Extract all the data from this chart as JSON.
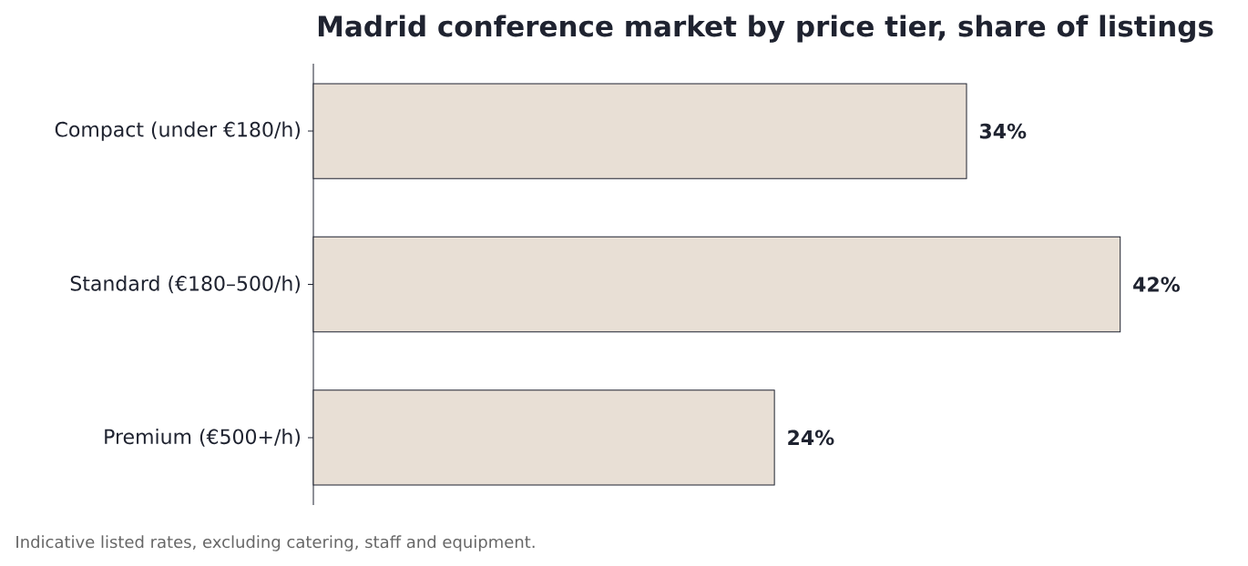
{
  "chart_data": {
    "type": "bar",
    "orientation": "horizontal",
    "title": "Madrid conference market by price tier, share of listings",
    "categories": [
      "Compact (under €180/h)",
      "Standard (€180–500/h)",
      "Premium (€500+/h)"
    ],
    "values": [
      34,
      42,
      24
    ],
    "color": "#e8dfd5",
    "value_labels": [
      "34%",
      "42%",
      "24%"
    ],
    "tick_labels": "y",
    "annotations": [
      "Indicative listed rates, excluding catering, staff and equipment."
    ]
  }
}
